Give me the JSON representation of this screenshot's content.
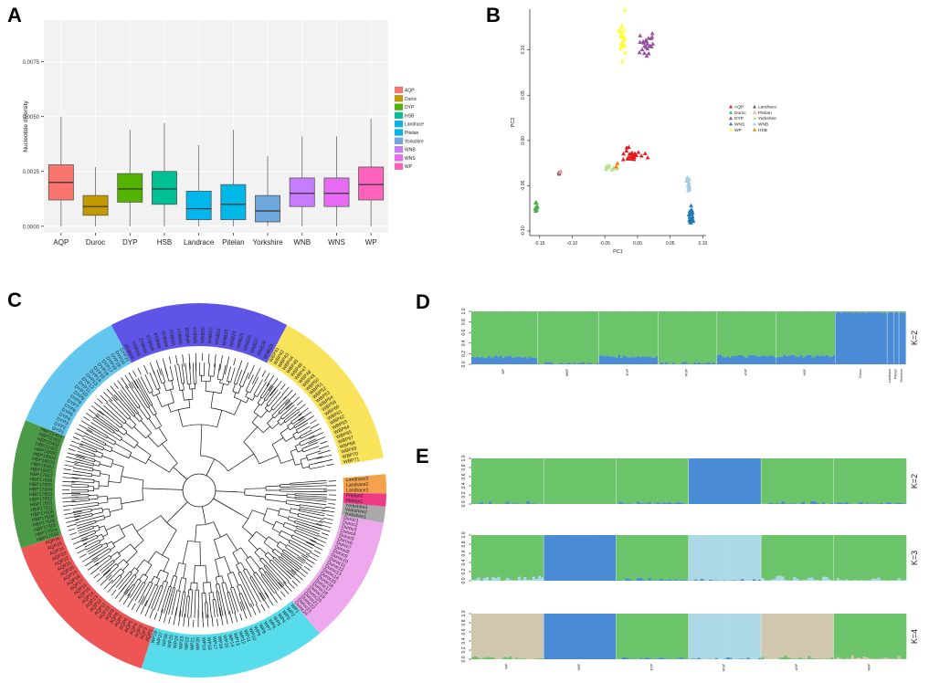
{
  "panels": {
    "a": "A",
    "b": "B",
    "c": "C",
    "d": "D",
    "e": "E"
  },
  "chart_data": [
    {
      "id": "A",
      "type": "box",
      "title": "",
      "ylabel": "Nucleotide diversity",
      "xlabel": "",
      "ylim": [
        -0.0003,
        0.0094
      ],
      "yticks": [
        "0.0000",
        "0.0025",
        "0.0050",
        "0.0075"
      ],
      "ytick_values": [
        0,
        0.0025,
        0.005,
        0.0075
      ],
      "categories": [
        "AQP",
        "Duroc",
        "DYP",
        "HSB",
        "Landrace",
        "Pitelan",
        "Yorkshire",
        "WNB",
        "WNS",
        "WP"
      ],
      "colors": [
        "#F8766D",
        "#C49A00",
        "#53B400",
        "#00C094",
        "#00B6EB",
        "#00B8E7",
        "#6FA8DC",
        "#C77CFF",
        "#E76BF3",
        "#FF62BC"
      ],
      "boxes": [
        {
          "min": 0,
          "q1": 0.0012,
          "median": 0.002,
          "q3": 0.0028,
          "max": 0.005
        },
        {
          "min": 0,
          "q1": 0.0005,
          "median": 0.0009,
          "q3": 0.0014,
          "max": 0.0027
        },
        {
          "min": 0,
          "q1": 0.0011,
          "median": 0.0017,
          "q3": 0.0024,
          "max": 0.0044
        },
        {
          "min": 0,
          "q1": 0.001,
          "median": 0.0017,
          "q3": 0.0025,
          "max": 0.0047
        },
        {
          "min": 0,
          "q1": 0.0003,
          "median": 0.0008,
          "q3": 0.0016,
          "max": 0.0037
        },
        {
          "min": 0,
          "q1": 0.0003,
          "median": 0.001,
          "q3": 0.0019,
          "max": 0.0044
        },
        {
          "min": 0,
          "q1": 0.0002,
          "median": 0.0007,
          "q3": 0.0014,
          "max": 0.0032
        },
        {
          "min": 0,
          "q1": 0.0009,
          "median": 0.0015,
          "q3": 0.0022,
          "max": 0.0041
        },
        {
          "min": 0,
          "q1": 0.0009,
          "median": 0.0015,
          "q3": 0.0022,
          "max": 0.0041
        },
        {
          "min": 0,
          "q1": 0.0012,
          "median": 0.0019,
          "q3": 0.0027,
          "max": 0.0049
        }
      ],
      "legend": [
        "AQP",
        "Duroc",
        "DYP",
        "HSB",
        "Landrace",
        "Pitelan",
        "Yorkshire",
        "WNB",
        "WNS",
        "WP"
      ],
      "legend_position": "right"
    },
    {
      "id": "B",
      "type": "scatter",
      "xlabel": "PC1",
      "ylabel": "PC2",
      "xlim": [
        -0.165,
        0.105
      ],
      "ylim": [
        -0.105,
        0.145
      ],
      "xticks": [
        "-0.15",
        "-0.10",
        "-0.05",
        "0.00",
        "0.05",
        "0.10"
      ],
      "xtick_values": [
        -0.15,
        -0.1,
        -0.05,
        0,
        0.05,
        0.1
      ],
      "yticks": [
        "-0.10",
        "-0.05",
        "0.00",
        "0.05",
        "0.10"
      ],
      "ytick_values": [
        -0.1,
        -0.05,
        0,
        0.05,
        0.1
      ],
      "legend": [
        {
          "name": "AQP",
          "color": "#E41A1C",
          "marker": "triangle"
        },
        {
          "name": "Landrace",
          "color": "#666666",
          "marker": "triangle"
        },
        {
          "name": "Duroc",
          "color": "#4DAF4A",
          "marker": "triangle"
        },
        {
          "name": "Pitelan",
          "color": "#FB9A99",
          "marker": "triangle"
        },
        {
          "name": "DYP",
          "color": "#984EA3",
          "marker": "triangle"
        },
        {
          "name": "Yorkshire",
          "color": "#B2DF8A",
          "marker": "triangle"
        },
        {
          "name": "WNS",
          "color": "#1F78B4",
          "marker": "triangle"
        },
        {
          "name": "WNB",
          "color": "#A6CEE3",
          "marker": "triangle"
        },
        {
          "name": "WP",
          "color": "#FFFF33",
          "marker": "triangle"
        },
        {
          "name": "HSB",
          "color": "#FF7F00",
          "marker": "triangle"
        }
      ],
      "clusters": [
        {
          "name": "WP",
          "cx": -0.022,
          "cy": 0.115,
          "sx": 0.006,
          "sy": 0.02,
          "n": 25,
          "color": "#FFFF33"
        },
        {
          "name": "DYP",
          "cx": 0.015,
          "cy": 0.105,
          "sx": 0.009,
          "sy": 0.012,
          "n": 25,
          "color": "#984EA3"
        },
        {
          "name": "AQP",
          "cx": -0.005,
          "cy": -0.015,
          "sx": 0.015,
          "sy": 0.006,
          "n": 25,
          "color": "#E41A1C"
        },
        {
          "name": "Yorkshire",
          "cx": -0.038,
          "cy": -0.03,
          "sx": 0.009,
          "sy": 0.003,
          "n": 8,
          "color": "#B2DF8A"
        },
        {
          "name": "Landrace",
          "cx": -0.12,
          "cy": -0.037,
          "sx": 0.002,
          "sy": 0.002,
          "n": 3,
          "color": "#666666"
        },
        {
          "name": "Pitelan",
          "cx": -0.118,
          "cy": -0.036,
          "sx": 0.002,
          "sy": 0.002,
          "n": 2,
          "color": "#FB9A99"
        },
        {
          "name": "Duroc",
          "cx": -0.155,
          "cy": -0.073,
          "sx": 0.002,
          "sy": 0.004,
          "n": 12,
          "color": "#4DAF4A"
        },
        {
          "name": "WNB",
          "cx": 0.078,
          "cy": -0.048,
          "sx": 0.004,
          "sy": 0.006,
          "n": 15,
          "color": "#A6CEE3"
        },
        {
          "name": "WNS",
          "cx": 0.082,
          "cy": -0.083,
          "sx": 0.003,
          "sy": 0.01,
          "n": 20,
          "color": "#1F78B4"
        },
        {
          "name": "HSB",
          "cx": -0.032,
          "cy": -0.028,
          "sx": 0.003,
          "sy": 0.002,
          "n": 2,
          "color": "#FF7F00"
        }
      ]
    },
    {
      "id": "C",
      "type": "tree",
      "ring": [
        {
          "name": "WNB",
          "color": "#5E55E8",
          "start": -118,
          "end": -62,
          "leaves": [
            "WNB10",
            "WNB11",
            "WNB12",
            "WNB13",
            "WNB14",
            "WNB15",
            "WNB16",
            "WNB17",
            "WNB18",
            "WNB19",
            "WNB20",
            "WNB21",
            "WNB22",
            "WNB23",
            "WNB24",
            "WNB25",
            "WNB26",
            "WNB27",
            "WNB28",
            "WNB29"
          ]
        },
        {
          "name": "WBP",
          "color": "#F8E35A",
          "start": -62,
          "end": -10,
          "leaves": [
            "WBP41",
            "WBP42",
            "WBP43",
            "WBP44",
            "WBP45",
            "WBP46",
            "WBP47",
            "WBP48",
            "WBP49",
            "WBP50",
            "WBP51",
            "WBP52",
            "WBP53",
            "WBP54",
            "WBP55",
            "WBP60",
            "WBP61",
            "WBP62",
            "WBP63",
            "WBP64",
            "WBP65",
            "WBP67",
            "WBP68",
            "WBP69",
            "WBP70",
            "WBP71"
          ]
        },
        {
          "name": "Landrace",
          "color": "#F5A24C",
          "start": -5,
          "end": 1,
          "leaves": [
            "Landrace3",
            "Landrace2",
            "Landrace1"
          ]
        },
        {
          "name": "Pitelan",
          "color": "#EF3B87",
          "start": 1,
          "end": 5,
          "leaves": [
            "Pitelan2",
            "Pitelan1"
          ]
        },
        {
          "name": "Yorkshire",
          "color": "#A9A9A9",
          "start": 5,
          "end": 10,
          "leaves": [
            "Yorkshire3",
            "Yorkshire2",
            "Yorkshire1"
          ]
        },
        {
          "name": "Duroc",
          "color": "#EEA8EE",
          "start": 10,
          "end": 50,
          "leaves": [
            "Duroc1",
            "Duroc2",
            "Duroc3",
            "Duroc4",
            "Duroc5",
            "Duroc6",
            "Duroc7",
            "Duroc8",
            "Duroc9",
            "Duroc10",
            "Duroc11",
            "Duroc12",
            "Duroc13",
            "Duroc14",
            "Duroc15",
            "Duroc16",
            "Duroc17",
            "Duroc18",
            "Duroc19",
            "Duroc20",
            "Duroc21",
            "Duroc22",
            "Duroc23",
            "Duroc24"
          ]
        },
        {
          "name": "WP",
          "color": "#56DCEA",
          "start": 50,
          "end": 108,
          "leaves": [
            "WP1",
            "WP2",
            "WP3",
            "WP4",
            "WP5",
            "WP6",
            "WP7",
            "WP8",
            "WP9",
            "WP10",
            "WP11",
            "WP12",
            "WP13",
            "WP14",
            "WP15",
            "WP16",
            "WP17",
            "WP18",
            "WP19",
            "WP20",
            "WP21",
            "WP22",
            "WP23",
            "WP24",
            "WP25",
            "WP26",
            "WP27",
            "WP28"
          ]
        },
        {
          "name": "AQP",
          "color": "#EE5555",
          "start": 108,
          "end": 162,
          "leaves": [
            "AQP1",
            "AQP2",
            "AQP3",
            "AQP4",
            "AQP5",
            "AQP6",
            "AQP7",
            "AQP8",
            "AQP9",
            "AQP10",
            "AQP11",
            "AQP12",
            "AQP13",
            "AQP14",
            "AQP15",
            "AQP16",
            "AQP17",
            "AQP18",
            "AQP19",
            "AQP20",
            "AQP21",
            "AQP22",
            "AQP23",
            "AQP24",
            "AQP25",
            "AQP26"
          ]
        },
        {
          "name": "HBP",
          "color": "#4C9A47",
          "start": 162,
          "end": 202,
          "leaves": [
            "HBP17510",
            "HBP17504",
            "HBP17505",
            "HBP17506",
            "HBP17508",
            "HBP17509",
            "HBP17511",
            "HBP17601",
            "HBP17602",
            "HBP17603",
            "HBP17604",
            "HBP17605",
            "HBP17606",
            "HBP17607",
            "HBP18001",
            "HBP18002",
            "HBP18003",
            "HBP18004",
            "HBP18005",
            "HBP22401",
            "HBP22402",
            "HBP22403",
            "HBP22404"
          ]
        },
        {
          "name": "DYP",
          "color": "#62C6EE",
          "start": 202,
          "end": 242,
          "leaves": [
            "DYP1",
            "DYP2",
            "DYP3",
            "DYP4",
            "DYP5",
            "DYP6",
            "DYP7",
            "DYP8",
            "DYP9",
            "DYP10",
            "DYP11",
            "DYP12",
            "DYP13",
            "DYP14",
            "DYP15",
            "DYP16",
            "DYP17",
            "DYP18",
            "DYP19",
            "DYP20",
            "DYP21"
          ]
        }
      ]
    },
    {
      "id": "D",
      "type": "stacked-bar",
      "k_label": "K=2",
      "yticks": [
        "0.0",
        "0.2",
        "0.4",
        "0.6",
        "0.8",
        "1.0"
      ],
      "groups": [
        {
          "name": "WP",
          "n": 28,
          "blue": 0.14
        },
        {
          "name": "WBP",
          "n": 26,
          "blue": 0.02
        },
        {
          "name": "DYP",
          "n": 25,
          "blue": 0.15
        },
        {
          "name": "WSP",
          "n": 25,
          "blue": 0.02
        },
        {
          "name": "ASP",
          "n": 25,
          "blue": 0.15
        },
        {
          "name": "HBP",
          "n": 25,
          "blue": 0.16
        },
        {
          "name": "Duroc",
          "n": 22,
          "blue": 0.97
        },
        {
          "name": "Landrace",
          "n": 3,
          "blue": 0.97
        },
        {
          "name": "Pitelan",
          "n": 2,
          "blue": 0.97
        },
        {
          "name": "Yorkshire",
          "n": 3,
          "blue": 0.97
        }
      ],
      "colors": {
        "green": "#6CC46A",
        "blue": "#4A8BD6"
      }
    },
    {
      "id": "E",
      "type": "stacked-bar",
      "yticks": [
        "0.0",
        "0.2",
        "0.4",
        "0.6",
        "0.8",
        "1.0"
      ],
      "group_labels": [
        "WP",
        "HBP",
        "DYP",
        "WSP",
        "ASP",
        "HBP"
      ],
      "rows": [
        {
          "k_label": "K=2",
          "colors": [
            "#6CC46A",
            "#6CC46A",
            "#6CC46A",
            "#4A8BD6",
            "#6CC46A",
            "#6CC46A"
          ],
          "minor": [
            "#4A8BD6",
            "#6CC46A",
            "#4A8BD6",
            "#6CC46A",
            "#4A8BD6",
            "#4A8BD6"
          ],
          "minor_frac": [
            0.03,
            0.0,
            0.03,
            0.0,
            0.03,
            0.02
          ]
        },
        {
          "k_label": "K=3",
          "colors": [
            "#6CC46A",
            "#4A8BD6",
            "#6CC46A",
            "#ADD8E6",
            "#6CC46A",
            "#6CC46A"
          ],
          "minor": [
            "#ADD8E6",
            "#6CC46A",
            "#4A8BD6",
            "#4A8BD6",
            "#ADD8E6",
            "#ADD8E6"
          ],
          "minor_frac": [
            0.05,
            0.0,
            0.03,
            0.02,
            0.05,
            0.04
          ]
        },
        {
          "k_label": "K=4",
          "colors": [
            "#D1C6AE",
            "#4A8BD6",
            "#6CC46A",
            "#ADD8E6",
            "#D1C6AE",
            "#6CC46A"
          ],
          "minor": [
            "#6CC46A",
            "#6CC46A",
            "#4A8BD6",
            "#4A8BD6",
            "#6CC46A",
            "#D1C6AE"
          ],
          "minor_frac": [
            0.03,
            0.0,
            0.02,
            0.02,
            0.04,
            0.04
          ]
        }
      ]
    }
  ]
}
